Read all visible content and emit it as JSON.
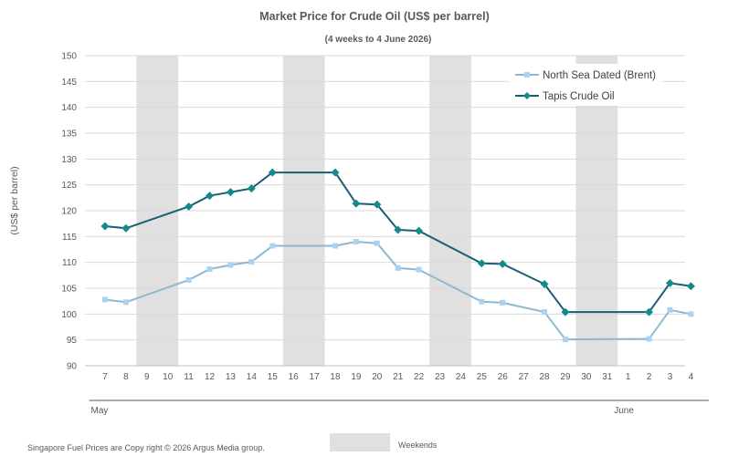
{
  "chart_data": {
    "type": "line",
    "title": "Market Price for Crude  Oil (US$ per barrel)",
    "subtitle": "(4 weeks to 4 June 2026)",
    "ylabel": "(US$ per barrel)",
    "xlabel": "",
    "ylim": [
      90,
      150
    ],
    "yticks": [
      90,
      95,
      100,
      105,
      110,
      115,
      120,
      125,
      130,
      135,
      140,
      145,
      150
    ],
    "categories": [
      "7",
      "8",
      "9",
      "10",
      "11",
      "12",
      "13",
      "14",
      "15",
      "16",
      "17",
      "18",
      "19",
      "20",
      "21",
      "22",
      "23",
      "24",
      "25",
      "26",
      "27",
      "28",
      "29",
      "30",
      "31",
      "1",
      "2",
      "3",
      "4"
    ],
    "months": [
      {
        "label": "May",
        "from": "7",
        "to": "31"
      },
      {
        "label": "June",
        "from": "1",
        "to": "4"
      }
    ],
    "weekend_bands": [
      [
        "9",
        "10"
      ],
      [
        "16",
        "17"
      ],
      [
        "23",
        "24"
      ],
      [
        "30",
        "31"
      ]
    ],
    "grid": true,
    "legend_position": "top-right",
    "series": [
      {
        "name": "North Sea Dated (Brent)",
        "color": "#8fb8d0",
        "marker": "square",
        "marker_color": "#a9d3f0",
        "values": [
          102.8,
          102.3,
          null,
          null,
          106.6,
          108.7,
          109.5,
          110.1,
          113.2,
          null,
          null,
          113.2,
          114.0,
          113.7,
          108.9,
          108.6,
          null,
          null,
          102.4,
          102.2,
          null,
          100.4,
          95.1,
          null,
          null,
          null,
          95.2,
          100.8,
          100.0
        ]
      },
      {
        "name": "Tapis Crude Oil",
        "color": "#1a5e72",
        "marker": "diamond",
        "marker_color": "#158a8a",
        "values": [
          117.0,
          116.6,
          null,
          null,
          120.8,
          122.9,
          123.6,
          124.3,
          127.4,
          null,
          null,
          127.4,
          121.4,
          121.2,
          116.3,
          116.1,
          null,
          null,
          109.8,
          109.7,
          null,
          105.8,
          100.4,
          null,
          null,
          null,
          100.4,
          106.0,
          105.4
        ]
      }
    ],
    "weekends_label": "Weekends",
    "weekend_color": "#e0e0e0"
  },
  "footer": {
    "copyright": "Singapore  Fuel Prices are  Copy right © 2026 Argus Media  group."
  }
}
